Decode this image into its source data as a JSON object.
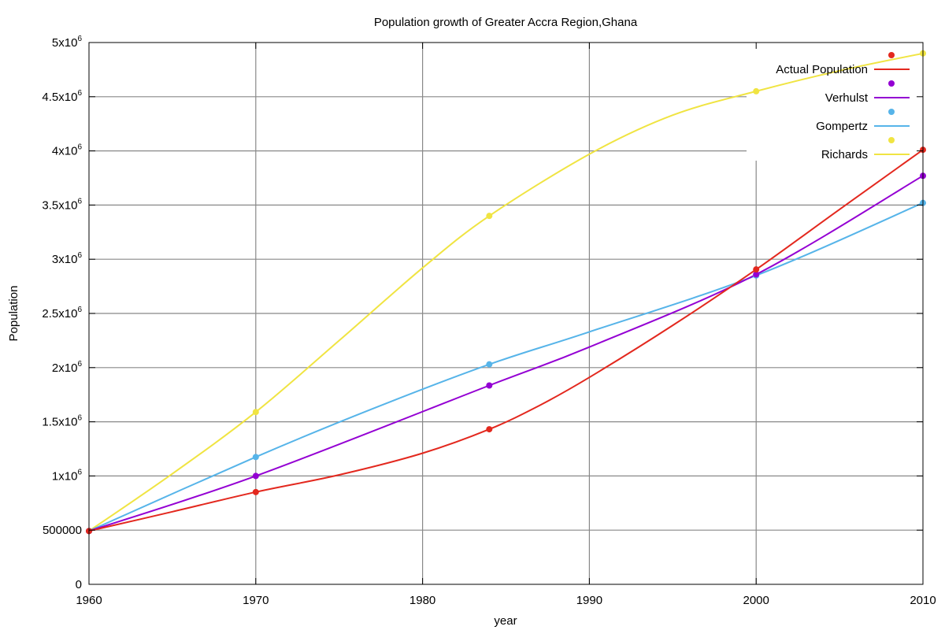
{
  "chart_data": {
    "type": "line",
    "title": "Population growth of Greater Accra Region,Ghana",
    "xlabel": "year",
    "ylabel": "Population",
    "xlim": [
      1960,
      2010
    ],
    "ylim": [
      0,
      5000000
    ],
    "xticks": [
      1960,
      1970,
      1980,
      1990,
      2000,
      2010
    ],
    "yticks": [
      0,
      500000,
      1000000,
      1500000,
      2000000,
      2500000,
      3000000,
      3500000,
      4000000,
      4500000,
      5000000
    ],
    "ytick_labels": [
      {
        "text": "0",
        "exp": ""
      },
      {
        "text": "500000",
        "exp": ""
      },
      {
        "text": "1x10",
        "exp": "6"
      },
      {
        "text": "1.5x10",
        "exp": "6"
      },
      {
        "text": "2x10",
        "exp": "6"
      },
      {
        "text": "2.5x10",
        "exp": "6"
      },
      {
        "text": "3x10",
        "exp": "6"
      },
      {
        "text": "3.5x10",
        "exp": "6"
      },
      {
        "text": "4x10",
        "exp": "6"
      },
      {
        "text": "4.5x10",
        "exp": "6"
      },
      {
        "text": "5x10",
        "exp": "6"
      }
    ],
    "grid": true,
    "legend_position": "top-right",
    "series": [
      {
        "name": "Actual Population",
        "color": "#e3281e",
        "points": [
          [
            1960,
            491817
          ],
          [
            1970,
            851614
          ],
          [
            1984,
            1431099
          ],
          [
            2000,
            2905726
          ],
          [
            2010,
            4010054
          ]
        ],
        "curve": [
          [
            1960,
            491817
          ],
          [
            1965,
            670000
          ],
          [
            1970,
            851614
          ],
          [
            1975,
            1010000
          ],
          [
            1980,
            1210000
          ],
          [
            1984,
            1431099
          ],
          [
            1987,
            1650000
          ],
          [
            1990,
            1910000
          ],
          [
            1995,
            2390000
          ],
          [
            2000,
            2905726
          ],
          [
            2005,
            3460000
          ],
          [
            2010,
            4010054
          ]
        ]
      },
      {
        "name": "Verhulst",
        "color": "#9400d3",
        "points": [
          [
            1960,
            491817
          ],
          [
            1970,
            1000000
          ],
          [
            1984,
            1835000
          ],
          [
            2000,
            2860000
          ],
          [
            2010,
            3770000
          ]
        ],
        "curve": [
          [
            1960,
            491817
          ],
          [
            1970,
            1000000
          ],
          [
            1984,
            1835000
          ],
          [
            1990,
            2190000
          ],
          [
            2000,
            2860000
          ],
          [
            2010,
            3770000
          ]
        ]
      },
      {
        "name": "Gompertz",
        "color": "#56b4e9",
        "points": [
          [
            1960,
            491817
          ],
          [
            1970,
            1175000
          ],
          [
            1984,
            2030000
          ],
          [
            2000,
            2850000
          ],
          [
            2010,
            3520000
          ]
        ],
        "curve": [
          [
            1960,
            491817
          ],
          [
            1970,
            1175000
          ],
          [
            1977,
            1620000
          ],
          [
            1984,
            2030000
          ],
          [
            1990,
            2330000
          ],
          [
            2000,
            2850000
          ],
          [
            2010,
            3520000
          ]
        ]
      },
      {
        "name": "Richards",
        "color": "#f0e442",
        "points": [
          [
            1960,
            491817
          ],
          [
            1970,
            1590000
          ],
          [
            1984,
            3400000
          ],
          [
            2000,
            4550000
          ],
          [
            2010,
            4900000
          ]
        ],
        "curve": [
          [
            1960,
            491817
          ],
          [
            1965,
            1020000
          ],
          [
            1970,
            1590000
          ],
          [
            1975,
            2250000
          ],
          [
            1980,
            2920000
          ],
          [
            1984,
            3400000
          ],
          [
            1990,
            3970000
          ],
          [
            1995,
            4330000
          ],
          [
            2000,
            4550000
          ],
          [
            2005,
            4740000
          ],
          [
            2010,
            4900000
          ]
        ]
      }
    ]
  }
}
